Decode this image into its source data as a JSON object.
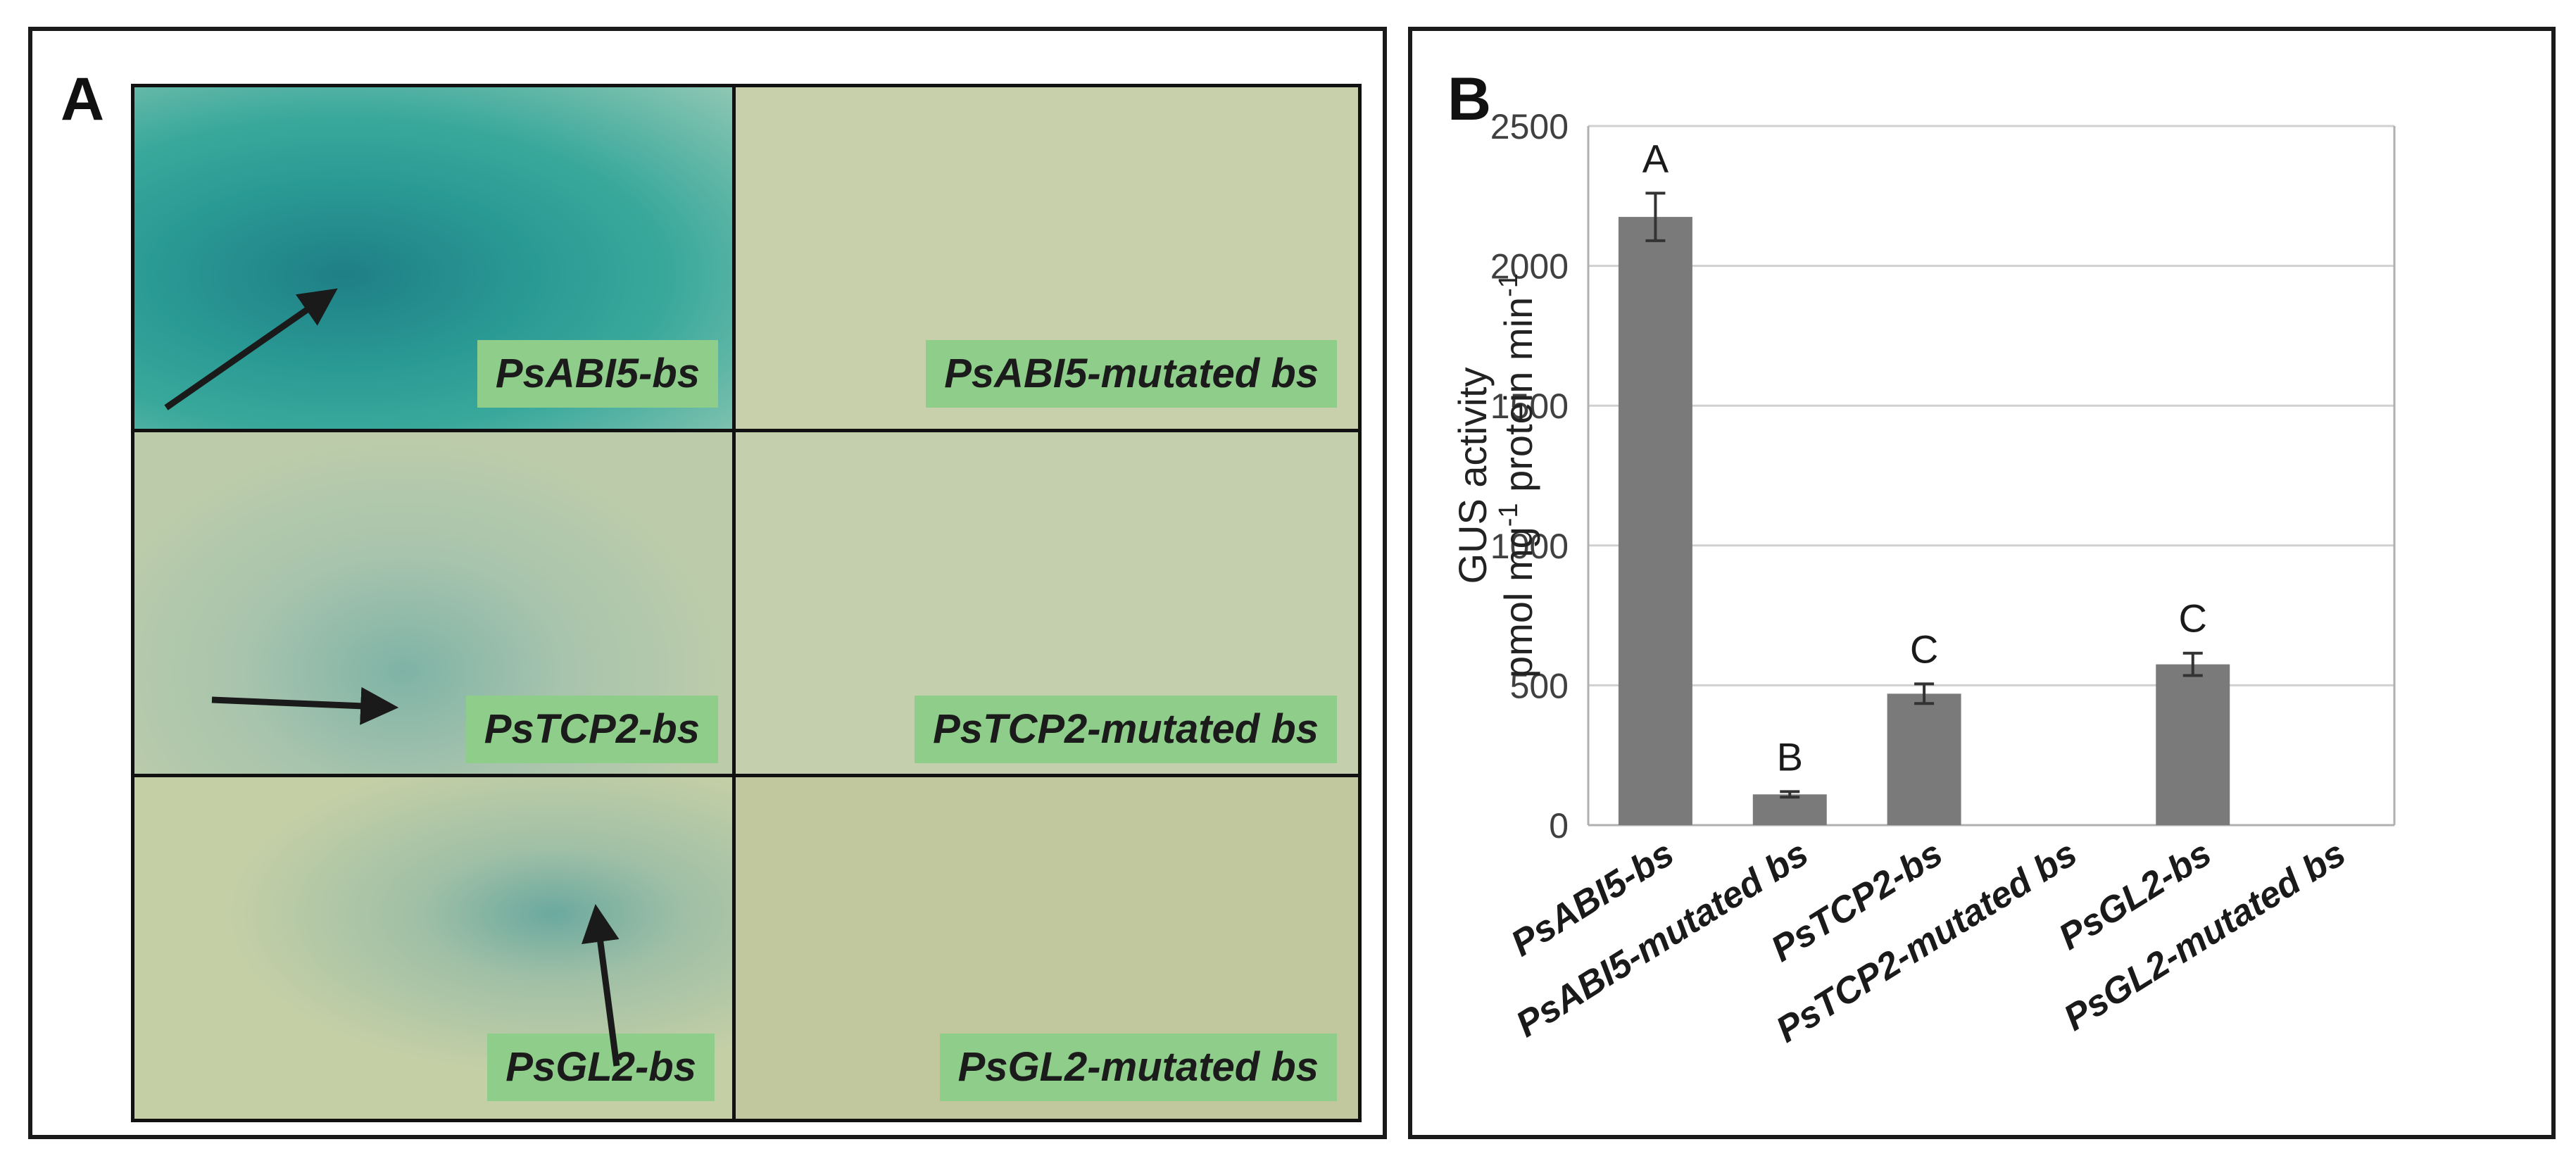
{
  "panel_a": {
    "letter": "A",
    "tiles": [
      {
        "label": "PsABI5-bs",
        "stained": true,
        "bg": "#2f9e93"
      },
      {
        "label": "PsABI5-mutated bs",
        "stained": false,
        "bg": "#c7cfab"
      },
      {
        "label": "PsTCP2-bs",
        "stained": true,
        "bg": "#bcccaa"
      },
      {
        "label": "PsTCP2-mutated bs",
        "stained": false,
        "bg": "#c4d0ad"
      },
      {
        "label": "PsGL2-bs",
        "stained": true,
        "bg": "#c4cfa6"
      },
      {
        "label": "PsGL2-mutated bs",
        "stained": false,
        "bg": "#c2c89e"
      }
    ],
    "tag_color": "#8fce8a"
  },
  "panel_b": {
    "letter": "B"
  },
  "chart_data": {
    "type": "bar",
    "categories": [
      "PsABI5-bs",
      "PsABI5-mutated bs",
      "PsTCP2-bs",
      "PsTCP2-mutated bs",
      "PsGL2-bs",
      "PsGL2-mutated bs"
    ],
    "values": [
      2175,
      110,
      470,
      0,
      575,
      0
    ],
    "errors": [
      85,
      10,
      35,
      0,
      40,
      0
    ],
    "significance_letters": [
      "A",
      "B",
      "C",
      "",
      "C",
      ""
    ],
    "ylabel_line1": "GUS activity",
    "ylabel_line2": "pmol mg",
    "ylabel_line2_sup": "-1",
    "ylabel_line2_mid": " protein min",
    "ylabel_line2_sup2": "-1",
    "ylim": [
      0,
      2500
    ],
    "yticks": [
      0,
      500,
      1000,
      1500,
      2000,
      2500
    ],
    "grid": true,
    "bar_color": "#7a7a7a",
    "grid_color": "#d0d0d0"
  }
}
